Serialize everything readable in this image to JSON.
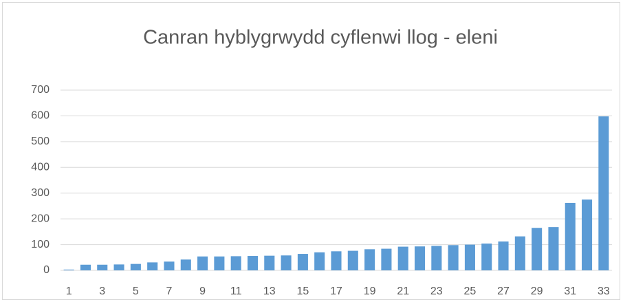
{
  "chart_data": {
    "type": "bar",
    "title": "Canran hyblygrwydd cyflenwi llog - eleni",
    "categories": [
      1,
      null,
      3,
      null,
      5,
      null,
      7,
      null,
      9,
      null,
      11,
      null,
      13,
      null,
      15,
      null,
      17,
      null,
      19,
      null,
      21,
      null,
      23,
      null,
      25,
      null,
      27,
      null,
      29,
      null,
      31,
      null,
      33
    ],
    "values": [
      3,
      22,
      22,
      23,
      25,
      31,
      34,
      42,
      54,
      54,
      55,
      56,
      57,
      58,
      64,
      70,
      74,
      76,
      82,
      84,
      92,
      93,
      95,
      98,
      100,
      104,
      112,
      132,
      165,
      168,
      262,
      275,
      598
    ],
    "color": "#5b9bd5",
    "ylim": [
      0,
      700
    ],
    "yticks": [
      0,
      100,
      200,
      300,
      400,
      500,
      600,
      700
    ],
    "grid": true
  }
}
